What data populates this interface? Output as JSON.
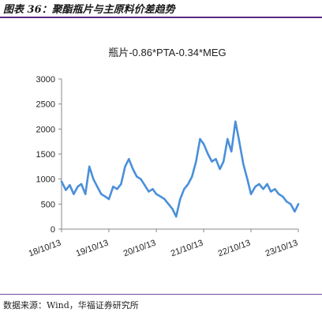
{
  "figure": {
    "caption": "图表 36：聚酯瓶片与主原料价差趋势",
    "source": "数据来源：Wind，华福证券研究所"
  },
  "colors": {
    "line": "#4a90d9",
    "accent": "#5b2a82"
  },
  "chart_data": {
    "type": "line",
    "title": "瓶片-0.86*PTA-0.34*MEG",
    "xlabel": "",
    "ylabel": "",
    "ylim": [
      0,
      3000
    ],
    "yticks": [
      0,
      500,
      1000,
      1500,
      2000,
      2500,
      3000
    ],
    "xticks": [
      "18/10/13",
      "19/10/13",
      "20/10/13",
      "21/10/13",
      "22/10/13",
      "23/10/13"
    ],
    "grid": false,
    "legend": "none",
    "series": [
      {
        "x": [
          "2018-10-13",
          "2018-11-15",
          "2018-12-15",
          "2019-01-15",
          "2019-02-15",
          "2019-03-15",
          "2019-04-15",
          "2019-05-15",
          "2019-06-15",
          "2019-07-15",
          "2019-08-15",
          "2019-09-15",
          "2019-10-13",
          "2019-11-15",
          "2019-12-15",
          "2020-01-15",
          "2020-02-15",
          "2020-03-15",
          "2020-04-15",
          "2020-05-15",
          "2020-06-15",
          "2020-07-15",
          "2020-08-15",
          "2020-09-15",
          "2020-10-13",
          "2020-11-15",
          "2020-12-15",
          "2021-01-15",
          "2021-02-15",
          "2021-03-15",
          "2021-04-15",
          "2021-05-15",
          "2021-06-15",
          "2021-07-15",
          "2021-08-15",
          "2021-09-15",
          "2021-10-13",
          "2021-11-15",
          "2021-12-15",
          "2022-01-15",
          "2022-02-15",
          "2022-03-15",
          "2022-04-15",
          "2022-05-15",
          "2022-06-15",
          "2022-07-15",
          "2022-08-15",
          "2022-09-15",
          "2022-10-13",
          "2022-11-15",
          "2022-12-15",
          "2023-01-15",
          "2023-02-15",
          "2023-03-15",
          "2023-04-15",
          "2023-05-15",
          "2023-06-15",
          "2023-07-15",
          "2023-08-15",
          "2023-09-15",
          "2023-10-13"
        ],
        "y": [
          950,
          780,
          880,
          700,
          850,
          900,
          700,
          1250,
          1000,
          850,
          700,
          650,
          600,
          850,
          800,
          900,
          1250,
          1400,
          1200,
          1050,
          1000,
          880,
          750,
          800,
          700,
          650,
          600,
          500,
          400,
          250,
          600,
          800,
          900,
          1050,
          1350,
          1800,
          1700,
          1500,
          1350,
          1400,
          1200,
          1350,
          1800,
          1550,
          2150,
          1750,
          1300,
          1000,
          700,
          850,
          900,
          800,
          900,
          750,
          800,
          700,
          650,
          550,
          500,
          350,
          500
        ]
      }
    ]
  }
}
